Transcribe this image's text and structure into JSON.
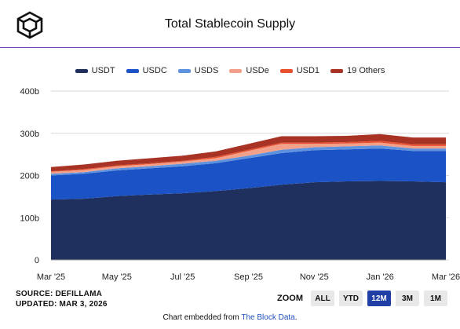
{
  "title": "Total Stablecoin Supply",
  "source_line": "SOURCE: DEFILLAMA",
  "updated_line": "UPDATED: MAR 3, 2026",
  "zoom": {
    "label": "ZOOM",
    "buttons": [
      "ALL",
      "YTD",
      "12M",
      "3M",
      "1M"
    ],
    "active": "12M"
  },
  "embed": {
    "prefix": "Chart embedded from ",
    "link": "The Block Data",
    "suffix": "."
  },
  "colors": {
    "USDT": "#1f2f5e",
    "USDC": "#1b53c7",
    "USDS": "#5e92de",
    "USDe": "#f2a08a",
    "USD1": "#e8502e",
    "19 Others": "#a83224",
    "accent_rule": "#7b3fbf"
  },
  "chart_data": {
    "type": "area",
    "stacked": true,
    "title": "Total Stablecoin Supply",
    "xlabel": "",
    "ylabel": "",
    "ylim": [
      0,
      400
    ],
    "y_unit": "b",
    "yticks": [
      "0",
      "100b",
      "200b",
      "300b",
      "400b"
    ],
    "xticks": [
      "Mar '25",
      "May '25",
      "Jul '25",
      "Sep '25",
      "Nov '25",
      "Jan '26",
      "Mar '26"
    ],
    "x": [
      "Mar '25",
      "Apr '25",
      "May '25",
      "Jun '25",
      "Jul '25",
      "Aug '25",
      "Sep '25",
      "Oct '25",
      "Nov '25",
      "Dec '25",
      "Jan '26",
      "Feb '26",
      "Mar '26"
    ],
    "legend_position": "top",
    "grid": "horizontal",
    "series": [
      {
        "name": "USDT",
        "values": [
          143,
          145,
          151,
          155,
          158,
          163,
          170,
          178,
          184,
          186,
          187,
          186,
          184
        ]
      },
      {
        "name": "USDC",
        "values": [
          57,
          59,
          61,
          62,
          64,
          66,
          71,
          75,
          76,
          76,
          77,
          72,
          74
        ]
      },
      {
        "name": "USDS",
        "values": [
          4,
          4,
          5,
          5,
          6,
          6,
          6,
          8,
          7,
          7,
          7,
          6,
          6
        ]
      },
      {
        "name": "USDe",
        "values": [
          5,
          5,
          5,
          5,
          5,
          6,
          11,
          14,
          8,
          7,
          7,
          6,
          6
        ]
      },
      {
        "name": "USD1",
        "values": [
          1,
          2,
          2,
          2,
          2,
          3,
          3,
          3,
          3,
          3,
          4,
          4,
          4
        ]
      },
      {
        "name": "19 Others",
        "values": [
          10,
          11,
          11,
          12,
          12,
          13,
          14,
          15,
          15,
          15,
          16,
          16,
          16
        ]
      }
    ]
  }
}
